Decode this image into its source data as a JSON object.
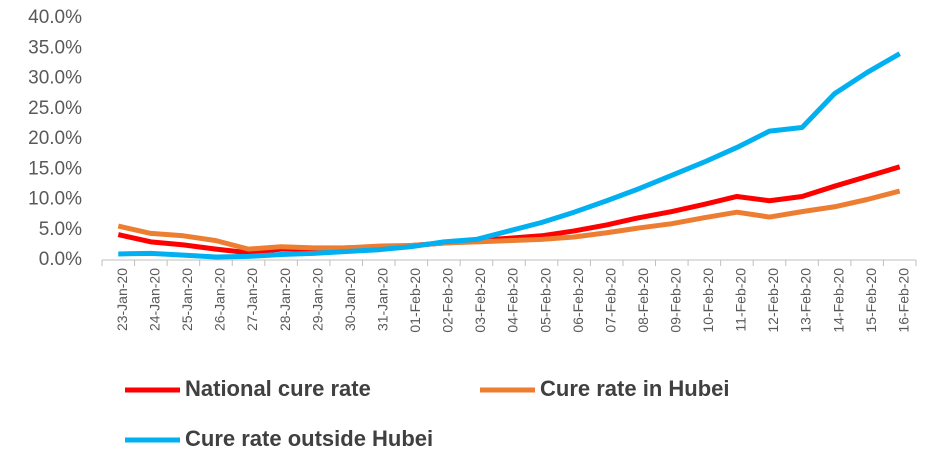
{
  "chart_data": {
    "type": "line",
    "categories": [
      "23-Jan-20",
      "24-Jan-20",
      "25-Jan-20",
      "26-Jan-20",
      "27-Jan-20",
      "28-Jan-20",
      "29-Jan-20",
      "30-Jan-20",
      "31-Jan-20",
      "01-Feb-20",
      "02-Feb-20",
      "03-Feb-20",
      "04-Feb-20",
      "05-Feb-20",
      "06-Feb-20",
      "07-Feb-20",
      "08-Feb-20",
      "09-Feb-20",
      "10-Feb-20",
      "11-Feb-20",
      "12-Feb-20",
      "13-Feb-20",
      "14-Feb-20",
      "15-Feb-20",
      "16-Feb-20"
    ],
    "series": [
      {
        "name": "National cure rate",
        "color": "#ff0000",
        "values": [
          4.2,
          3.0,
          2.5,
          1.8,
          1.2,
          1.8,
          1.8,
          2.0,
          2.1,
          2.4,
          2.8,
          3.2,
          3.6,
          4.0,
          4.8,
          5.8,
          7.0,
          8.0,
          9.2,
          10.5,
          9.8,
          10.5,
          12.2,
          13.8,
          15.4
        ]
      },
      {
        "name": "Cure rate in Hubei",
        "color": "#ed7d31",
        "values": [
          5.6,
          4.4,
          4.0,
          3.2,
          1.8,
          2.2,
          2.0,
          2.0,
          2.3,
          2.4,
          2.8,
          3.0,
          3.2,
          3.4,
          3.8,
          4.5,
          5.3,
          6.0,
          7.0,
          7.9,
          7.1,
          8.0,
          8.8,
          10.0,
          11.4
        ]
      },
      {
        "name": "Cure rate outside Hubei",
        "color": "#00b0f0",
        "values": [
          1.0,
          1.1,
          0.8,
          0.5,
          0.6,
          0.9,
          1.1,
          1.4,
          1.7,
          2.2,
          3.0,
          3.4,
          4.8,
          6.2,
          7.9,
          9.8,
          11.8,
          14.0,
          16.2,
          18.6,
          21.3,
          21.9,
          27.5,
          31.0,
          34.1
        ]
      }
    ],
    "ylim": [
      0,
      40
    ],
    "yticks": [
      {
        "value": 0,
        "label": "0.0%"
      },
      {
        "value": 5,
        "label": "5.0%"
      },
      {
        "value": 10,
        "label": "10.0%"
      },
      {
        "value": 15,
        "label": "15.0%"
      },
      {
        "value": 20,
        "label": "20.0%"
      },
      {
        "value": 25,
        "label": "25.0%"
      },
      {
        "value": 30,
        "label": "30.0%"
      },
      {
        "value": 35,
        "label": "35.0%"
      },
      {
        "value": 40,
        "label": "40.0%"
      }
    ],
    "grid": false,
    "legend": "bottom"
  }
}
